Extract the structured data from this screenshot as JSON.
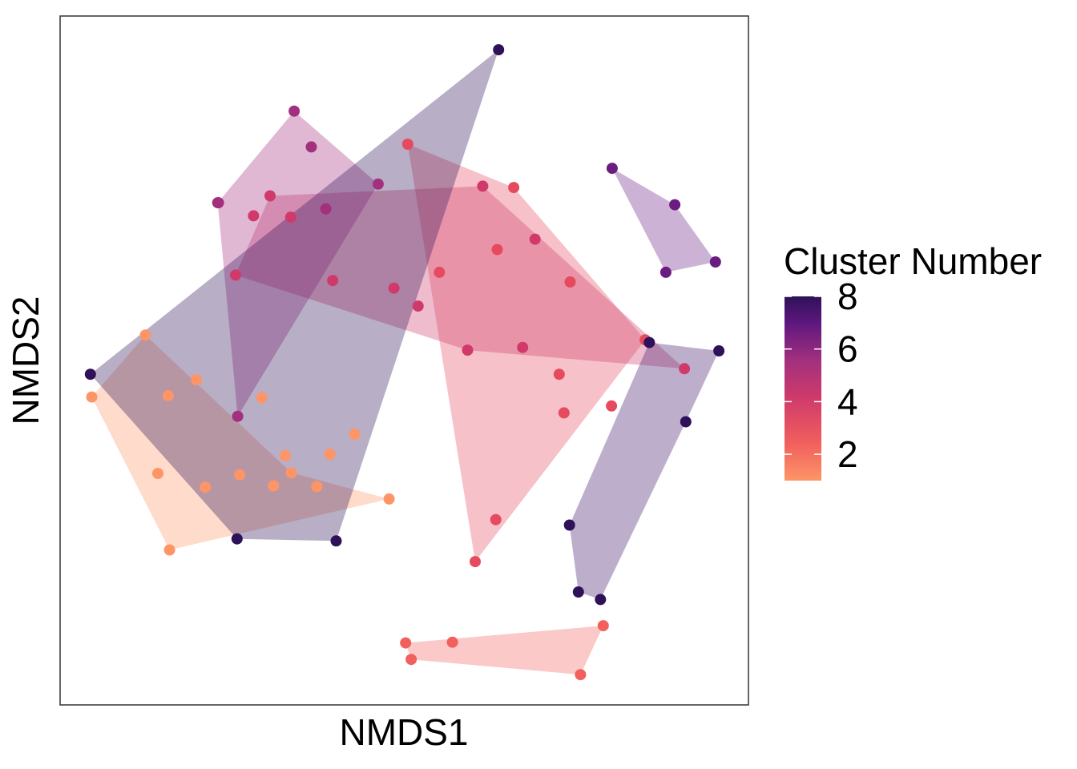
{
  "chart_data": {
    "type": "scatter",
    "title": "",
    "xlabel": "NMDS1",
    "ylabel": "NMDS2",
    "xlim": [
      0,
      1
    ],
    "ylim": [
      0,
      1
    ],
    "grid": false,
    "legend": {
      "title": "Cluster Number",
      "placement": "right",
      "range": [
        1,
        8
      ],
      "ticks": [
        2,
        4,
        6,
        8
      ],
      "colors": [
        "#FD9567",
        "#F9795D",
        "#F1605D",
        "#DE4968",
        "#C13C75",
        "#A3307E",
        "#5F187F",
        "#2E1159"
      ]
    },
    "clusters": [
      {
        "cluster": 1,
        "color": "#FD9567",
        "points": [
          [
            0.124,
            0.537
          ],
          [
            0.198,
            0.472
          ],
          [
            0.157,
            0.449
          ],
          [
            0.336,
            0.337
          ],
          [
            0.159,
            0.225
          ],
          [
            0.211,
            0.316
          ],
          [
            0.293,
            0.446
          ],
          [
            0.428,
            0.393
          ],
          [
            0.327,
            0.362
          ],
          [
            0.392,
            0.364
          ],
          [
            0.046,
            0.447
          ],
          [
            0.261,
            0.334
          ],
          [
            0.31,
            0.318
          ],
          [
            0.373,
            0.317
          ],
          [
            0.478,
            0.299
          ],
          [
            0.142,
            0.336
          ]
        ],
        "hull": [
          [
            0.124,
            0.537
          ],
          [
            0.336,
            0.337
          ],
          [
            0.478,
            0.299
          ],
          [
            0.159,
            0.225
          ],
          [
            0.046,
            0.447
          ]
        ]
      },
      {
        "cluster": 2,
        "color": "#F1605D",
        "points": [
          [
            0.502,
            0.09
          ],
          [
            0.57,
            0.091
          ],
          [
            0.51,
            0.066
          ],
          [
            0.789,
            0.115
          ],
          [
            0.756,
            0.044
          ]
        ],
        "hull": [
          [
            0.502,
            0.09
          ],
          [
            0.51,
            0.066
          ],
          [
            0.756,
            0.044
          ],
          [
            0.789,
            0.115
          ]
        ]
      },
      {
        "cluster": 3,
        "color": "#E64A5F",
        "points": [
          [
            0.505,
            0.814
          ],
          [
            0.659,
            0.751
          ],
          [
            0.635,
            0.661
          ],
          [
            0.741,
            0.614
          ],
          [
            0.85,
            0.53
          ],
          [
            0.725,
            0.48
          ],
          [
            0.801,
            0.434
          ],
          [
            0.732,
            0.424
          ],
          [
            0.633,
            0.269
          ],
          [
            0.603,
            0.208
          ],
          [
            0.551,
            0.628
          ]
        ],
        "hull": [
          [
            0.505,
            0.814
          ],
          [
            0.659,
            0.751
          ],
          [
            0.85,
            0.53
          ],
          [
            0.603,
            0.208
          ]
        ]
      },
      {
        "cluster": 4,
        "color": "#CF3A6B",
        "points": [
          [
            0.614,
            0.753
          ],
          [
            0.305,
            0.739
          ],
          [
            0.281,
            0.71
          ],
          [
            0.335,
            0.708
          ],
          [
            0.69,
            0.676
          ],
          [
            0.255,
            0.624
          ],
          [
            0.396,
            0.616
          ],
          [
            0.485,
            0.605
          ],
          [
            0.52,
            0.579
          ],
          [
            0.592,
            0.515
          ],
          [
            0.672,
            0.519
          ],
          [
            0.907,
            0.488
          ]
        ],
        "hull": [
          [
            0.305,
            0.739
          ],
          [
            0.614,
            0.753
          ],
          [
            0.907,
            0.488
          ],
          [
            0.592,
            0.515
          ],
          [
            0.255,
            0.624
          ]
        ]
      },
      {
        "cluster": 5,
        "color": "#A3307E",
        "points": [
          [
            0.34,
            0.862
          ],
          [
            0.365,
            0.81
          ],
          [
            0.229,
            0.729
          ],
          [
            0.23,
            0.729
          ],
          [
            0.386,
            0.72
          ],
          [
            0.462,
            0.756
          ],
          [
            0.258,
            0.419
          ]
        ],
        "hull": [
          [
            0.34,
            0.862
          ],
          [
            0.462,
            0.756
          ],
          [
            0.258,
            0.419
          ],
          [
            0.229,
            0.729
          ]
        ]
      },
      {
        "cluster": 6,
        "color": "#6A1C81",
        "points": [
          [
            0.802,
            0.779
          ],
          [
            0.893,
            0.726
          ],
          [
            0.952,
            0.643
          ],
          [
            0.88,
            0.628
          ]
        ],
        "hull": [
          [
            0.802,
            0.779
          ],
          [
            0.893,
            0.726
          ],
          [
            0.952,
            0.643
          ],
          [
            0.88,
            0.628
          ]
        ]
      },
      {
        "cluster": 8,
        "color": "#2E1159",
        "points": [
          [
            0.637,
            0.951
          ],
          [
            0.044,
            0.48
          ],
          [
            0.257,
            0.241
          ],
          [
            0.401,
            0.238
          ],
          [
            0.856,
            0.526
          ],
          [
            0.957,
            0.514
          ],
          [
            0.909,
            0.411
          ],
          [
            0.74,
            0.261
          ],
          [
            0.753,
            0.164
          ],
          [
            0.785,
            0.153
          ]
        ],
        "hull": [
          [
            0.637,
            0.951
          ],
          [
            0.401,
            0.238
          ],
          [
            0.257,
            0.241
          ],
          [
            0.044,
            0.48
          ]
        ]
      },
      {
        "cluster": 7,
        "color": "#3F1469",
        "points": [],
        "hull": [
          [
            0.856,
            0.526
          ],
          [
            0.957,
            0.514
          ],
          [
            0.909,
            0.411
          ],
          [
            0.785,
            0.153
          ],
          [
            0.753,
            0.164
          ],
          [
            0.74,
            0.261
          ]
        ]
      }
    ]
  }
}
